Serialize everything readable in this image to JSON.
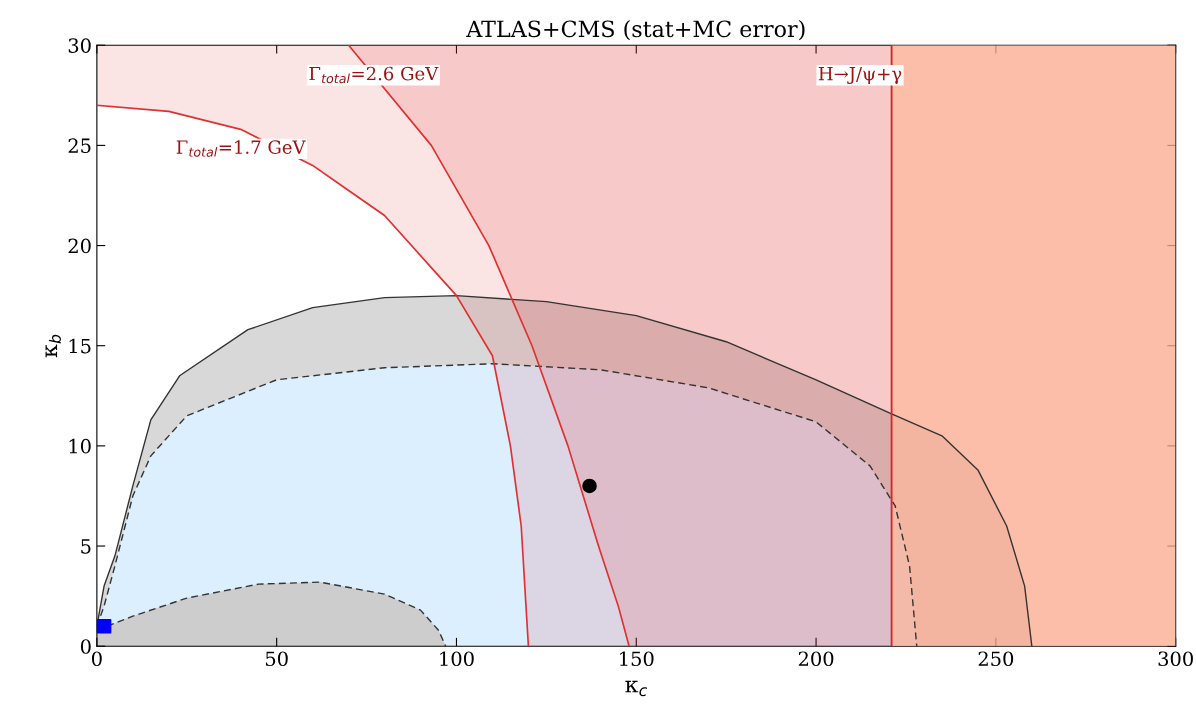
{
  "chart_data": {
    "type": "area",
    "title": "ATLAS+CMS (stat+MC error)",
    "xlabel": "κ$_{c}$",
    "ylabel": "κ$_{b}$",
    "xlim": [
      0,
      300
    ],
    "ylim": [
      0,
      30
    ],
    "xticks": [
      0,
      50,
      100,
      150,
      200,
      250,
      300
    ],
    "yticks": [
      0,
      5,
      10,
      15,
      20,
      25,
      30
    ],
    "grid": false,
    "series": [
      {
        "color": "#d8d8d8",
        "line_style": "solid",
        "x": [
          0,
          2,
          5,
          10,
          15,
          23,
          42,
          60,
          80,
          100,
          125,
          150,
          175,
          200,
          221,
          235,
          245,
          253,
          258,
          260
        ],
        "values": [
          1,
          3,
          4.5,
          8,
          11.3,
          13.5,
          15.8,
          16.9,
          17.4,
          17.5,
          17.2,
          16.5,
          15.2,
          13.3,
          11.6,
          10.5,
          8.8,
          6,
          3,
          0
        ]
      },
      {
        "color": "#dcefff",
        "line_style": "dashed",
        "x": [
          0,
          2,
          5,
          10,
          15,
          25,
          50,
          80,
          110,
          140,
          170,
          200,
          215,
          222,
          226,
          228
        ],
        "values": [
          1,
          2,
          4,
          7.5,
          9.5,
          11.5,
          13.3,
          13.9,
          14.1,
          13.8,
          12.9,
          11.2,
          9,
          7,
          4,
          0
        ]
      },
      {
        "color": "#cdcdcd",
        "line_style": "dashed",
        "x": [
          0,
          10,
          25,
          45,
          62,
          80,
          90,
          95,
          97
        ],
        "values": [
          0.8,
          1.5,
          2.4,
          3.1,
          3.2,
          2.6,
          1.8,
          0.8,
          0
        ]
      },
      {
        "type": "line",
        "color": "#e03030",
        "line_style": "solid",
        "x": [
          0,
          20,
          40,
          60,
          70,
          80,
          93,
          100,
          109,
          110,
          115,
          118,
          120,
          121,
          131,
          139.5,
          145,
          148
        ],
        "values": [
          27,
          26.7,
          25.8,
          24,
          22.75,
          21.5,
          18.9,
          17.5,
          14.8,
          14.5,
          10,
          6,
          0,
          null,
          null,
          null,
          null,
          null
        ],
        "lower": [
          27,
          26.7,
          25.8,
          24,
          22.75,
          21.5,
          18.9,
          17.5,
          14.8,
          14.5,
          10,
          6,
          0,
          0,
          0,
          0,
          0,
          0
        ],
        "upper": [
          30,
          30,
          30,
          30,
          30,
          27.8,
          25,
          22.8,
          20,
          19.6,
          17.5,
          16.25,
          15.4,
          15,
          10,
          5,
          2,
          0
        ]
      },
      {
        "type": "line",
        "color": "#e03030",
        "line_style": "solid",
        "x": [
          70,
          93,
          109,
          121,
          131,
          139.5,
          145,
          148,
          300
        ],
        "values": [
          30,
          25,
          20,
          15,
          10,
          5,
          2,
          0,
          null
        ],
        "lower": [
          30,
          25,
          20,
          15,
          10,
          5,
          2,
          0,
          0
        ],
        "upper": [
          30,
          30,
          30,
          30,
          30,
          30,
          30,
          30,
          30
        ]
      },
      {
        "type": "scatter",
        "color": "#000000",
        "marker": "circle",
        "x": [
          137
        ],
        "values": [
          8
        ]
      },
      {
        "type": "scatter",
        "color": "#0000ff",
        "marker": "square",
        "x": [
          2
        ],
        "values": [
          1
        ]
      }
    ],
    "bands": [
      {
        "axis": "x",
        "from": 221,
        "to": 300,
        "color": "#fdb99b"
      }
    ],
    "ref_lines": [
      {
        "axis": "x",
        "value": 221,
        "label": "H→J/ψ+γ",
        "color": "#e02020"
      }
    ],
    "annotations": [
      {
        "text": "Γ$_{total}$=2.6 GeV",
        "x": 76.9,
        "y": 28.5
      },
      {
        "text": "Γ$_{total}$=1.7 GeV",
        "x": 40,
        "y": 25.8
      }
    ]
  }
}
